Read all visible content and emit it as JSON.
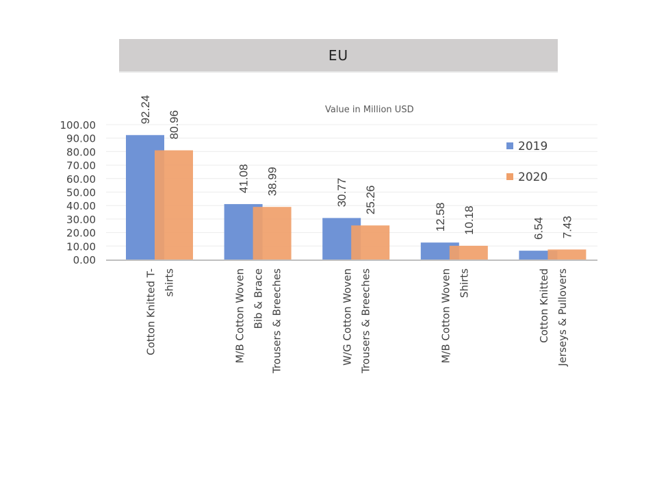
{
  "chart_data": {
    "type": "bar",
    "title": "EU",
    "subtitle": "Value in Million USD",
    "xlabel": "",
    "ylabel": "",
    "ylim": [
      0,
      100
    ],
    "yticks": [
      "0.00",
      "10.00",
      "20.00",
      "30.00",
      "40.00",
      "50.00",
      "60.00",
      "70.00",
      "80.00",
      "90.00",
      "100.00"
    ],
    "grid": true,
    "legend_position": "right",
    "categories": [
      [
        "Cotton  Knitted  T-",
        "shirts"
      ],
      [
        "M/B Cotton  Woven",
        "Bib  & Brace",
        "Trousers & Breeches"
      ],
      [
        "W/G Cotton  Woven",
        "Trousers & Breeches"
      ],
      [
        "M/B Cotton  Woven",
        "Shirts"
      ],
      [
        "Cotton  Knitted",
        "Jerseys & Pullovers"
      ]
    ],
    "series": [
      {
        "name": "2019",
        "color": "#6f93d6",
        "values": [
          92.24,
          41.08,
          30.77,
          12.58,
          6.54
        ],
        "labels": [
          "92.24",
          "41.08",
          "30.77",
          "12.58",
          "6.54"
        ]
      },
      {
        "name": "2020",
        "color": "#f0a06a",
        "values": [
          80.96,
          38.99,
          25.26,
          10.18,
          7.43
        ],
        "labels": [
          "80.96",
          "38.99",
          "25.26",
          "10.18",
          "7.43"
        ]
      }
    ]
  }
}
